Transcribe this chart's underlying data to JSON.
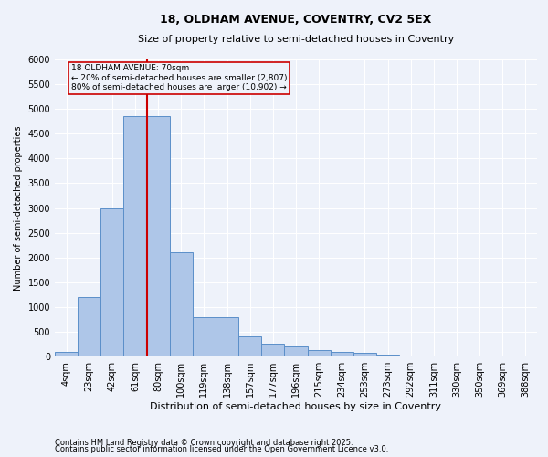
{
  "title1": "18, OLDHAM AVENUE, COVENTRY, CV2 5EX",
  "title2": "Size of property relative to semi-detached houses in Coventry",
  "xlabel": "Distribution of semi-detached houses by size in Coventry",
  "ylabel": "Number of semi-detached properties",
  "categories": [
    "4sqm",
    "23sqm",
    "42sqm",
    "61sqm",
    "80sqm",
    "100sqm",
    "119sqm",
    "138sqm",
    "157sqm",
    "177sqm",
    "196sqm",
    "215sqm",
    "234sqm",
    "253sqm",
    "273sqm",
    "292sqm",
    "311sqm",
    "330sqm",
    "350sqm",
    "369sqm",
    "388sqm"
  ],
  "values": [
    100,
    1200,
    3000,
    4850,
    4850,
    2100,
    800,
    800,
    400,
    250,
    200,
    130,
    100,
    70,
    30,
    10,
    2,
    0,
    0,
    0,
    0
  ],
  "bar_color": "#aec6e8",
  "bar_edge_color": "#5b8fc9",
  "vline_color": "#cc0000",
  "annotation_box_color": "#cc0000",
  "annotation_text_line1": "18 OLDHAM AVENUE: 70sqm",
  "annotation_text_line2": "← 20% of semi-detached houses are smaller (2,807)",
  "annotation_text_line3": "80% of semi-detached houses are larger (10,902) →",
  "ylim": [
    0,
    6000
  ],
  "yticks": [
    0,
    500,
    1000,
    1500,
    2000,
    2500,
    3000,
    3500,
    4000,
    4500,
    5000,
    5500,
    6000
  ],
  "background_color": "#eef2fa",
  "grid_color": "#ffffff",
  "footnote1": "Contains HM Land Registry data © Crown copyright and database right 2025.",
  "footnote2": "Contains public sector information licensed under the Open Government Licence v3.0.",
  "title_fontsize": 9,
  "subtitle_fontsize": 8,
  "tick_fontsize": 7,
  "ylabel_fontsize": 7,
  "xlabel_fontsize": 8,
  "footnote_fontsize": 6
}
